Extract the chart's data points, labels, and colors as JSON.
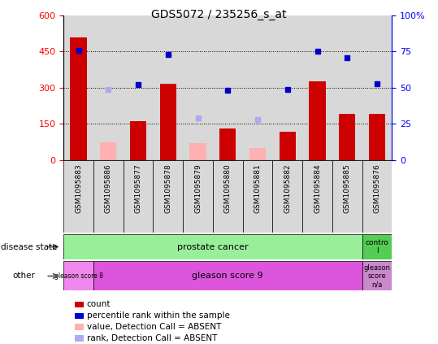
{
  "title": "GDS5072 / 235256_s_at",
  "samples": [
    "GSM1095883",
    "GSM1095886",
    "GSM1095877",
    "GSM1095878",
    "GSM1095879",
    "GSM1095880",
    "GSM1095881",
    "GSM1095882",
    "GSM1095884",
    "GSM1095885",
    "GSM1095876"
  ],
  "count_values": [
    510,
    null,
    162,
    315,
    null,
    130,
    null,
    118,
    328,
    192,
    192
  ],
  "count_absent": [
    null,
    72,
    null,
    null,
    70,
    null,
    48,
    null,
    null,
    null,
    null
  ],
  "percentile_values": [
    76,
    null,
    52,
    73,
    null,
    48,
    null,
    49,
    75,
    71,
    53
  ],
  "percentile_absent": [
    null,
    49,
    null,
    null,
    29,
    null,
    28,
    null,
    null,
    null,
    null
  ],
  "ylim_left": [
    0,
    600
  ],
  "ylim_right": [
    0,
    100
  ],
  "yticks_left": [
    0,
    150,
    300,
    450,
    600
  ],
  "yticks_right": [
    0,
    25,
    50,
    75,
    100
  ],
  "bar_color": "#cc0000",
  "bar_absent_color": "#ffb0b0",
  "dot_color": "#0000cc",
  "dot_absent_color": "#aaaaee",
  "pc_color": "#99ee99",
  "ctrl_color": "#55cc55",
  "gs8_color": "#ee88ee",
  "gs9_color": "#dd55dd",
  "gsna_color": "#cc88cc",
  "col_bg_color": "#d8d8d8"
}
